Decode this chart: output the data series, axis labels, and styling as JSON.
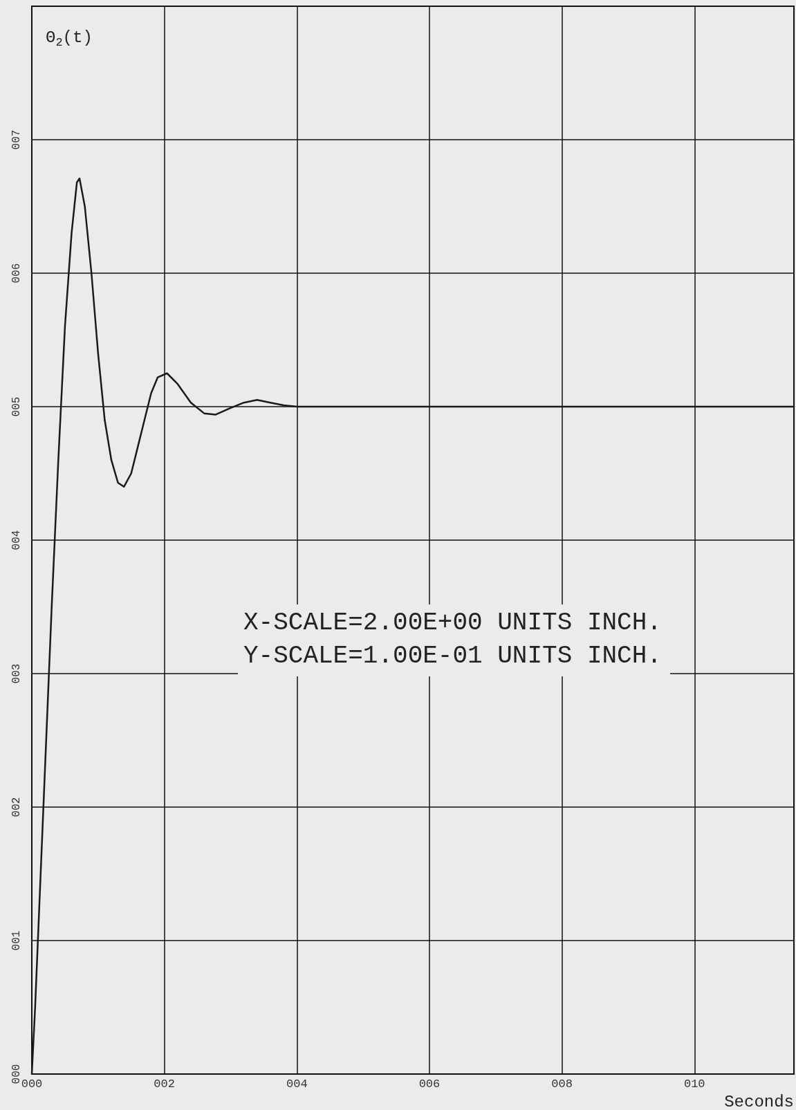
{
  "chart_data": {
    "type": "line",
    "ylabel": "Θ$_{2}$(t)",
    "xlabel": "Seconds",
    "annotations": [
      "X-SCALE=2.00E+00 UNITS INCH.",
      "Y-SCALE=1.00E-01 UNITS INCH."
    ],
    "x": [
      0,
      0.05,
      0.1,
      0.2,
      0.3,
      0.4,
      0.5,
      0.6,
      0.68,
      0.72,
      0.8,
      0.9,
      1.0,
      1.1,
      1.2,
      1.3,
      1.39,
      1.5,
      1.6,
      1.7,
      1.8,
      1.9,
      2.04,
      2.2,
      2.4,
      2.6,
      2.77,
      3.0,
      3.2,
      3.4,
      3.6,
      3.8,
      4.0,
      11.5
    ],
    "series": [
      {
        "color": "#1a1a1a",
        "values": [
          0,
          0.5,
          1.1,
          2.3,
          3.5,
          4.6,
          5.6,
          6.3,
          6.68,
          6.71,
          6.5,
          6.0,
          5.4,
          4.9,
          4.6,
          4.43,
          4.4,
          4.5,
          4.7,
          4.9,
          5.1,
          5.22,
          5.25,
          5.17,
          5.03,
          4.95,
          4.94,
          4.99,
          5.03,
          5.05,
          5.03,
          5.01,
          5.0,
          5.0
        ]
      }
    ],
    "xlim": [
      0,
      11.5
    ],
    "xticks": [
      {
        "value": 0,
        "label": "000"
      },
      {
        "value": 2,
        "label": "002"
      },
      {
        "value": 4,
        "label": "004"
      },
      {
        "value": 6,
        "label": "006"
      },
      {
        "value": 8,
        "label": "008"
      },
      {
        "value": 10,
        "label": "010"
      }
    ],
    "ylim": [
      0,
      8
    ],
    "yticks": [
      {
        "value": 0,
        "label": "000"
      },
      {
        "value": 1,
        "label": "001"
      },
      {
        "value": 2,
        "label": "002"
      },
      {
        "value": 3,
        "label": "003"
      },
      {
        "value": 4,
        "label": "004"
      },
      {
        "value": 5,
        "label": "005"
      },
      {
        "value": 6,
        "label": "006"
      },
      {
        "value": 7,
        "label": "007"
      }
    ],
    "grid": true,
    "marker": "none",
    "line_style": "solid"
  }
}
